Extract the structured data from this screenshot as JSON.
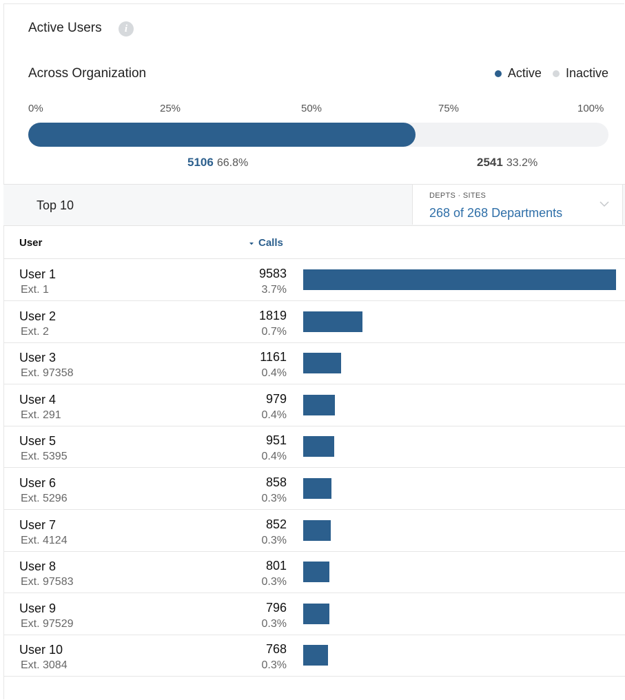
{
  "widget": {
    "title": "Active Users",
    "info_icon": "info-icon",
    "subtitle": "Across Organization",
    "legend": {
      "active_label": "Active",
      "inactive_label": "Inactive",
      "active_color": "#2c5f8d",
      "inactive_color": "#d6d9dc"
    },
    "scale_ticks": [
      "0%",
      "25%",
      "50%",
      "75%",
      "100%"
    ],
    "active_fraction": 0.668,
    "active_count": "5106",
    "active_pct": "66.8%",
    "inactive_count": "2541",
    "inactive_pct": "33.2%"
  },
  "top": {
    "label": "Top 10",
    "dropdown": {
      "label": "DEPTS · SITES",
      "value": "268 of 268 Departments",
      "icon": "chevron-down-icon"
    }
  },
  "table": {
    "col_user": "User",
    "col_calls": "Calls",
    "sort_icon": "sort-down-icon",
    "max_calls": 9583,
    "rows": [
      {
        "name": "User 1",
        "ext": "Ext. 1",
        "calls": "9583",
        "pct": "3.7%",
        "value": 9583
      },
      {
        "name": "User 2",
        "ext": "Ext. 2",
        "calls": "1819",
        "pct": "0.7%",
        "value": 1819
      },
      {
        "name": "User 3",
        "ext": "Ext. 97358",
        "calls": "1161",
        "pct": "0.4%",
        "value": 1161
      },
      {
        "name": "User 4",
        "ext": "Ext. 291",
        "calls": "979",
        "pct": "0.4%",
        "value": 979
      },
      {
        "name": "User 5",
        "ext": "Ext. 5395",
        "calls": "951",
        "pct": "0.4%",
        "value": 951
      },
      {
        "name": "User 6",
        "ext": "Ext. 5296",
        "calls": "858",
        "pct": "0.3%",
        "value": 858
      },
      {
        "name": "User 7",
        "ext": "Ext. 4124",
        "calls": "852",
        "pct": "0.3%",
        "value": 852
      },
      {
        "name": "User 8",
        "ext": "Ext. 97583",
        "calls": "801",
        "pct": "0.3%",
        "value": 801
      },
      {
        "name": "User 9",
        "ext": "Ext. 97529",
        "calls": "796",
        "pct": "0.3%",
        "value": 796
      },
      {
        "name": "User 10",
        "ext": "Ext. 3084",
        "calls": "768",
        "pct": "0.3%",
        "value": 768
      }
    ]
  }
}
